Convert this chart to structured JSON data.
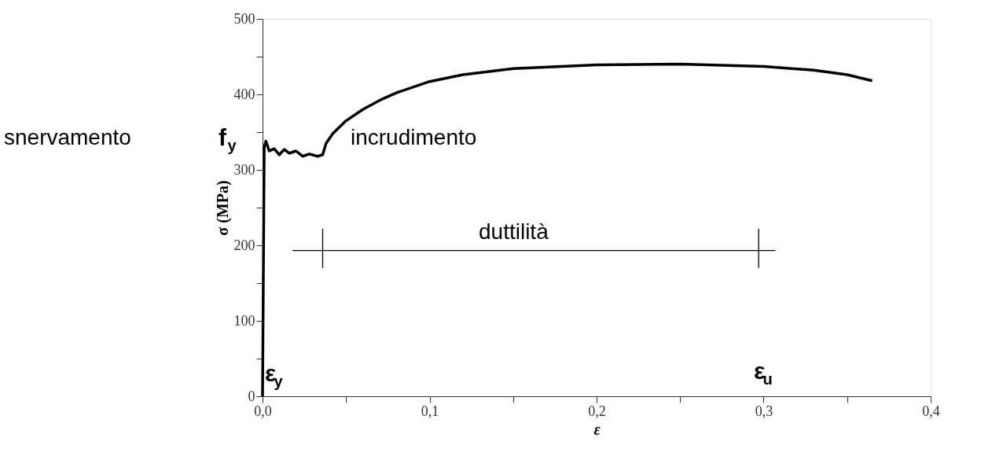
{
  "chart_data": {
    "type": "line",
    "xlabel": "ε",
    "ylabel": "σ (MPa)",
    "xlim": [
      0,
      0.4
    ],
    "ylim": [
      0,
      500
    ],
    "xticks": [
      {
        "value": 0,
        "label": "0,0"
      },
      {
        "value": 0.05,
        "label": null
      },
      {
        "value": 0.1,
        "label": "0,1"
      },
      {
        "value": 0.15,
        "label": null
      },
      {
        "value": 0.2,
        "label": "0,2"
      },
      {
        "value": 0.25,
        "label": null
      },
      {
        "value": 0.3,
        "label": "0,3"
      },
      {
        "value": 0.35,
        "label": null
      },
      {
        "value": 0.4,
        "label": "0,4"
      }
    ],
    "yticks": [
      0,
      {
        "value": 50,
        "label": null
      },
      100,
      {
        "value": 150,
        "label": null
      },
      200,
      {
        "value": 250,
        "label": null
      },
      300,
      {
        "value": 350,
        "label": null
      },
      400,
      {
        "value": 450,
        "label": null
      },
      500
    ],
    "grid": false,
    "marker": "none",
    "line_style": "solid",
    "series": [
      {
        "color": "#000000",
        "x": [
          0,
          0.001,
          0.002,
          0.004,
          0.007,
          0.01,
          0.013,
          0.016,
          0.02,
          0.024,
          0.028,
          0.033,
          0.036,
          0.038,
          0.042,
          0.05,
          0.06,
          0.07,
          0.08,
          0.1,
          0.12,
          0.15,
          0.2,
          0.25,
          0.3,
          0.33,
          0.35,
          0.365
        ],
        "values": [
          0,
          330,
          338,
          325,
          328,
          320,
          327,
          322,
          325,
          318,
          321,
          318,
          320,
          335,
          348,
          365,
          380,
          392,
          402,
          417,
          426,
          434,
          439,
          440,
          437,
          432,
          426,
          418
        ]
      },
      {
        "color": "#000000",
        "x": [
          0.018,
          0.307
        ],
        "values": [
          193,
          193
        ]
      },
      {
        "color": "#000000",
        "x": [
          0.036,
          0.036
        ],
        "values": [
          170,
          222
        ]
      },
      {
        "color": "#000000",
        "x": [
          0.297,
          0.297
        ],
        "values": [
          170,
          222
        ]
      }
    ],
    "annotations": [
      "snervamento",
      "f$_{y}$",
      "incrudimento",
      "duttilità",
      "ε$_{y}$",
      "ε$_{u}$"
    ]
  }
}
